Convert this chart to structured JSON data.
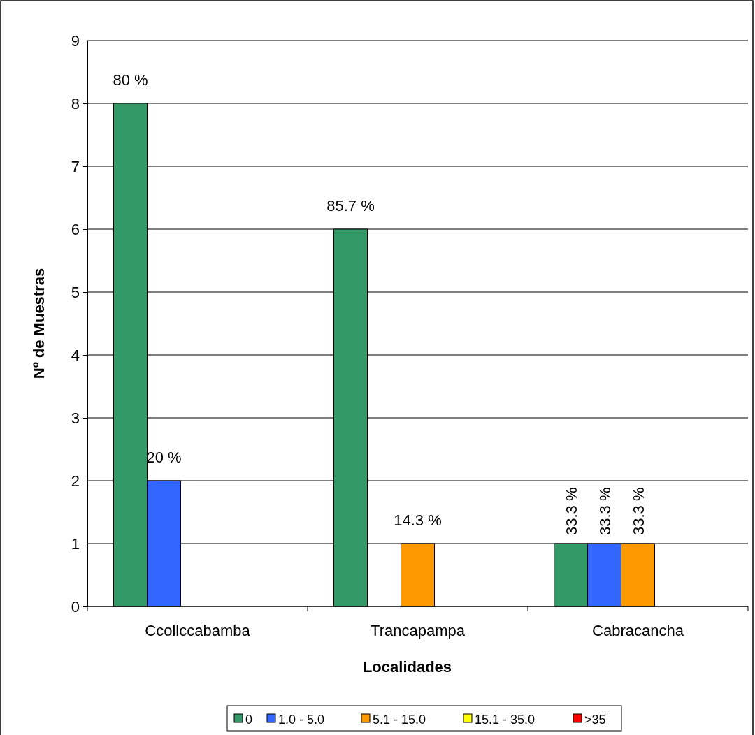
{
  "chart_data": {
    "type": "bar",
    "xlabel": "Localidades",
    "ylabel": "Nº de Muestras",
    "categories": [
      "Ccollccabamba",
      "Trancapampa",
      "Cabracancha"
    ],
    "series": [
      {
        "name": "0",
        "color": "#339966",
        "values": [
          8,
          6,
          1
        ]
      },
      {
        "name": "1.0 - 5.0",
        "color": "#3366ff",
        "values": [
          2,
          0,
          1
        ]
      },
      {
        "name": "5.1 - 15.0",
        "color": "#ff9900",
        "values": [
          0,
          1,
          1
        ]
      },
      {
        "name": "15.1 - 35.0",
        "color": "#ffff00",
        "values": [
          0,
          0,
          0
        ]
      },
      {
        "name": ">35",
        "color": "#ff0000",
        "values": [
          0,
          0,
          0
        ]
      }
    ],
    "annotations": [
      "80 %",
      "20 %",
      "85.7 %",
      "14.3 %",
      "33.3 %",
      "33.3 %",
      "33.3 %"
    ],
    "ylim": [
      0,
      9
    ],
    "yticks": [
      0,
      1,
      2,
      3,
      4,
      5,
      6,
      7,
      8,
      9
    ],
    "grid": "y",
    "legend": "bottom"
  }
}
